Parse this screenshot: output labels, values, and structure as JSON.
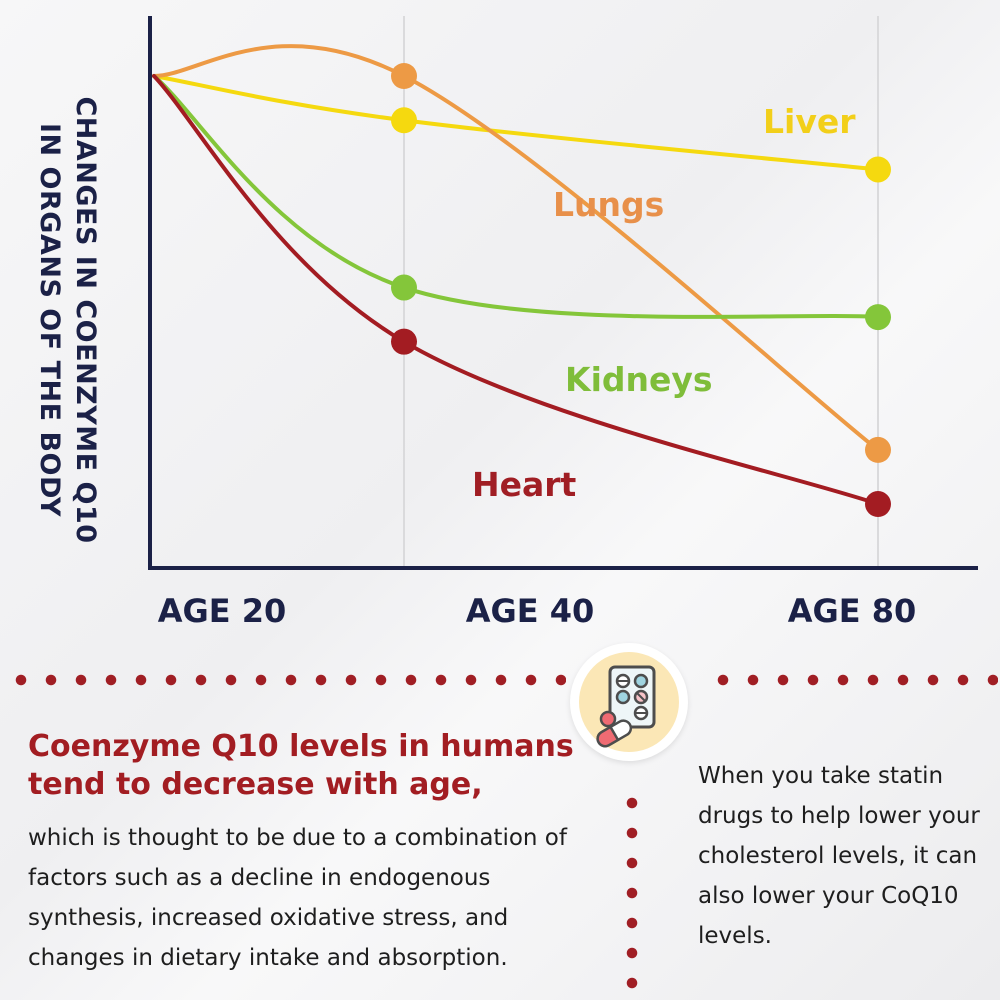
{
  "chart_data": {
    "type": "line",
    "title": "",
    "xlabel": "",
    "ylabel": "CHANGES IN COENZYME Q10 IN ORGANS OF THE BODY",
    "categories": [
      "AGE 20",
      "AGE 40",
      "AGE 80"
    ],
    "grid": "vertical lines at AGE 40 and AGE 80",
    "legend": "labels placed next to each curve",
    "ylim": [
      0,
      100
    ],
    "series": [
      {
        "name": "Liver",
        "color": "#f5d90f",
        "values": [
          100,
          91,
          81
        ]
      },
      {
        "name": "Lungs",
        "color": "#ed9a45",
        "values": [
          100,
          100,
          24
        ]
      },
      {
        "name": "Kidneys",
        "color": "#84c63a",
        "values": [
          100,
          57,
          51
        ]
      },
      {
        "name": "Heart",
        "color": "#a31c22",
        "values": [
          100,
          46,
          13
        ]
      }
    ]
  },
  "headline": "Coenzyme Q10 levels in humans tend to decrease with age,",
  "body_left": "which is thought to be due to a combination of factors such as a decline in endogenous synthesis, increased oxidative stress, and changes in dietary intake and absorption.",
  "body_right": "When you take statin drugs to help lower your cholesterol levels, it can also lower your CoQ10 levels.",
  "badge_icon": "pill-blister-pack-icon",
  "colors": {
    "axis": "#1b2147",
    "accent": "#a01e24",
    "badge_background": "#fbe7b6"
  }
}
